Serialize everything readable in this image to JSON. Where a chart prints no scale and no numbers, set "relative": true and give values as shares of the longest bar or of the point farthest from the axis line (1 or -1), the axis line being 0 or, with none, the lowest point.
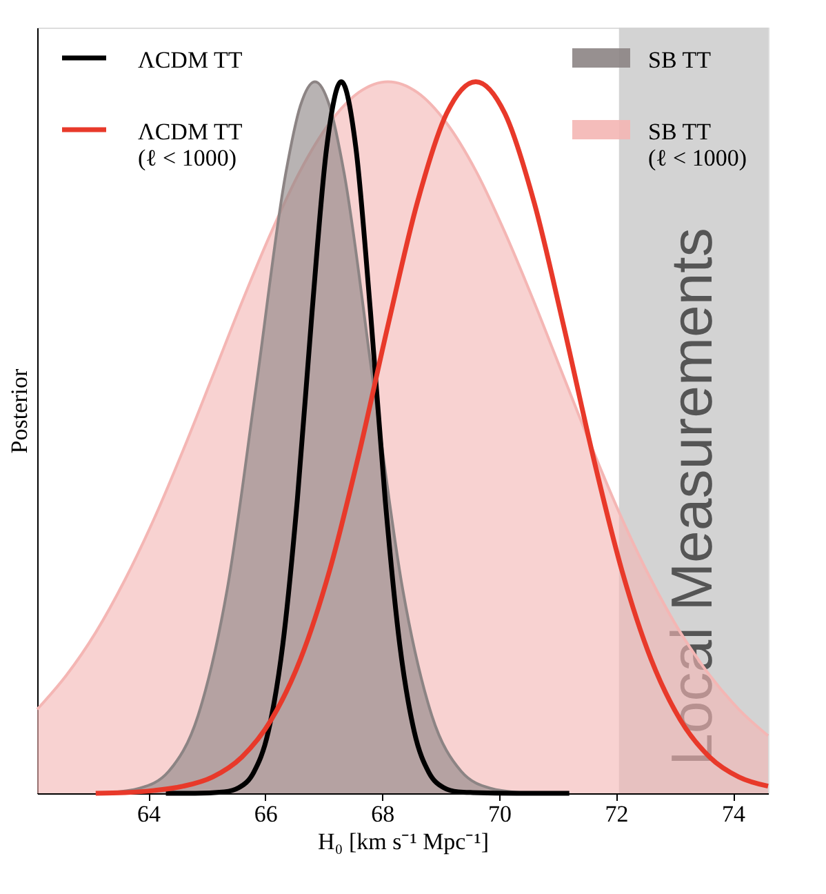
{
  "chart_data": {
    "type": "line",
    "xlabel": "H₀ [km s⁻¹ Mpc⁻¹]",
    "ylabel": "Posterior",
    "relative": true,
    "xlim": [
      62.1,
      74.6
    ],
    "xticks": [
      64,
      66,
      68,
      70,
      72,
      74
    ],
    "grid": false,
    "legend": "top",
    "marker": "none",
    "line_style": "solid",
    "series": [
      {
        "name": "SB TT\n(ℓ < 1000)",
        "type": "area",
        "color": "#f4b6b4",
        "x": [
          62.1,
          62.6,
          63.1,
          63.6,
          64.1,
          64.6,
          65.1,
          65.6,
          66.1,
          66.6,
          67.1,
          67.6,
          68.1,
          68.6,
          69.1,
          69.6,
          70.1,
          70.6,
          71.1,
          71.6,
          72.1,
          72.6,
          73.1,
          73.6,
          74.1,
          74.6
        ],
        "values": [
          0.118,
          0.166,
          0.226,
          0.3,
          0.386,
          0.483,
          0.586,
          0.69,
          0.788,
          0.875,
          0.942,
          0.985,
          1,
          0.985,
          0.942,
          0.875,
          0.788,
          0.69,
          0.586,
          0.483,
          0.386,
          0.3,
          0.226,
          0.166,
          0.118,
          0.081
        ]
      },
      {
        "name": "SB TT",
        "type": "area",
        "color": "#8c8484",
        "x": [
          63.35,
          63.85,
          64.35,
          64.85,
          65.35,
          65.85,
          66.35,
          66.6,
          66.85,
          67.1,
          67.35,
          67.85,
          68.35,
          68.85,
          69.35,
          69.85,
          70.35
        ],
        "values": [
          0.001,
          0.007,
          0.031,
          0.109,
          0.287,
          0.575,
          0.871,
          0.966,
          1,
          0.966,
          0.871,
          0.575,
          0.287,
          0.109,
          0.031,
          0.007,
          0.001
        ]
      },
      {
        "name": "ΛCDM TT",
        "color": "#000000",
        "x": [
          64.3,
          64.8,
          65.3,
          65.55,
          65.8,
          66.05,
          66.3,
          66.55,
          66.8,
          67.05,
          67.3,
          67.55,
          67.8,
          68.05,
          68.3,
          68.55,
          68.8,
          69.05,
          69.3,
          69.55,
          70.3,
          71.2
        ],
        "values": [
          0,
          0,
          0.002,
          0.008,
          0.029,
          0.086,
          0.209,
          0.414,
          0.676,
          0.907,
          1,
          0.907,
          0.676,
          0.414,
          0.209,
          0.086,
          0.029,
          0.008,
          0.002,
          0.001,
          0,
          0
        ]
      },
      {
        "name": "ΛCDM TT\n(ℓ < 1000)",
        "color": "#e8392a",
        "x": [
          63.1,
          63.6,
          64.1,
          64.6,
          65.1,
          65.6,
          66.1,
          66.6,
          67.1,
          67.6,
          68.1,
          68.6,
          69.1,
          69.6,
          70.1,
          70.6,
          71.1,
          71.6,
          72.1,
          72.6,
          73.1,
          73.6,
          74.1,
          74.6
        ],
        "values": [
          0,
          0.001,
          0.004,
          0.01,
          0.023,
          0.051,
          0.103,
          0.188,
          0.313,
          0.476,
          0.658,
          0.83,
          0.955,
          1,
          0.955,
          0.83,
          0.658,
          0.476,
          0.313,
          0.188,
          0.103,
          0.051,
          0.023,
          0.01
        ]
      }
    ],
    "bands": [
      {
        "axis": "x",
        "from": 72.05,
        "to": 74.6,
        "label": "Local Measurements",
        "color": "#d3d3d3"
      }
    ]
  }
}
